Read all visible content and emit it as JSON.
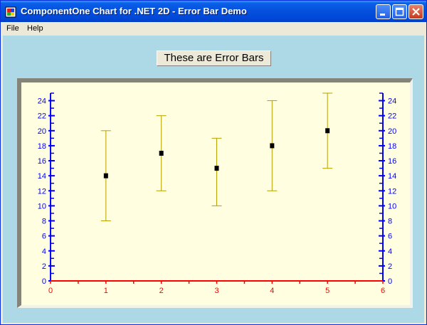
{
  "window": {
    "title": "ComponentOne Chart for .NET 2D - Error Bar Demo"
  },
  "menu": {
    "items": [
      "File",
      "Help"
    ]
  },
  "label": {
    "text": "These are Error Bars"
  },
  "colors": {
    "x_axis": "#ff0000",
    "y_axis": "#0000ff",
    "error_bar": "#b8a000",
    "marker": "#000000",
    "plot_bg": "#fffee0"
  },
  "chart_data": {
    "type": "scatter",
    "x": [
      1,
      2,
      3,
      4,
      5
    ],
    "y": [
      14,
      17,
      15,
      18,
      20
    ],
    "y_low": [
      8,
      12,
      10,
      12,
      15
    ],
    "y_high": [
      20,
      22,
      19,
      24,
      25
    ],
    "xlim": [
      0,
      6
    ],
    "ylim": [
      0,
      25
    ],
    "x_ticks": [
      0,
      1,
      2,
      3,
      4,
      5,
      6
    ],
    "y_ticks": [
      0,
      2,
      4,
      6,
      8,
      10,
      12,
      14,
      16,
      18,
      20,
      22,
      24
    ],
    "grid": false,
    "legend": "none"
  }
}
